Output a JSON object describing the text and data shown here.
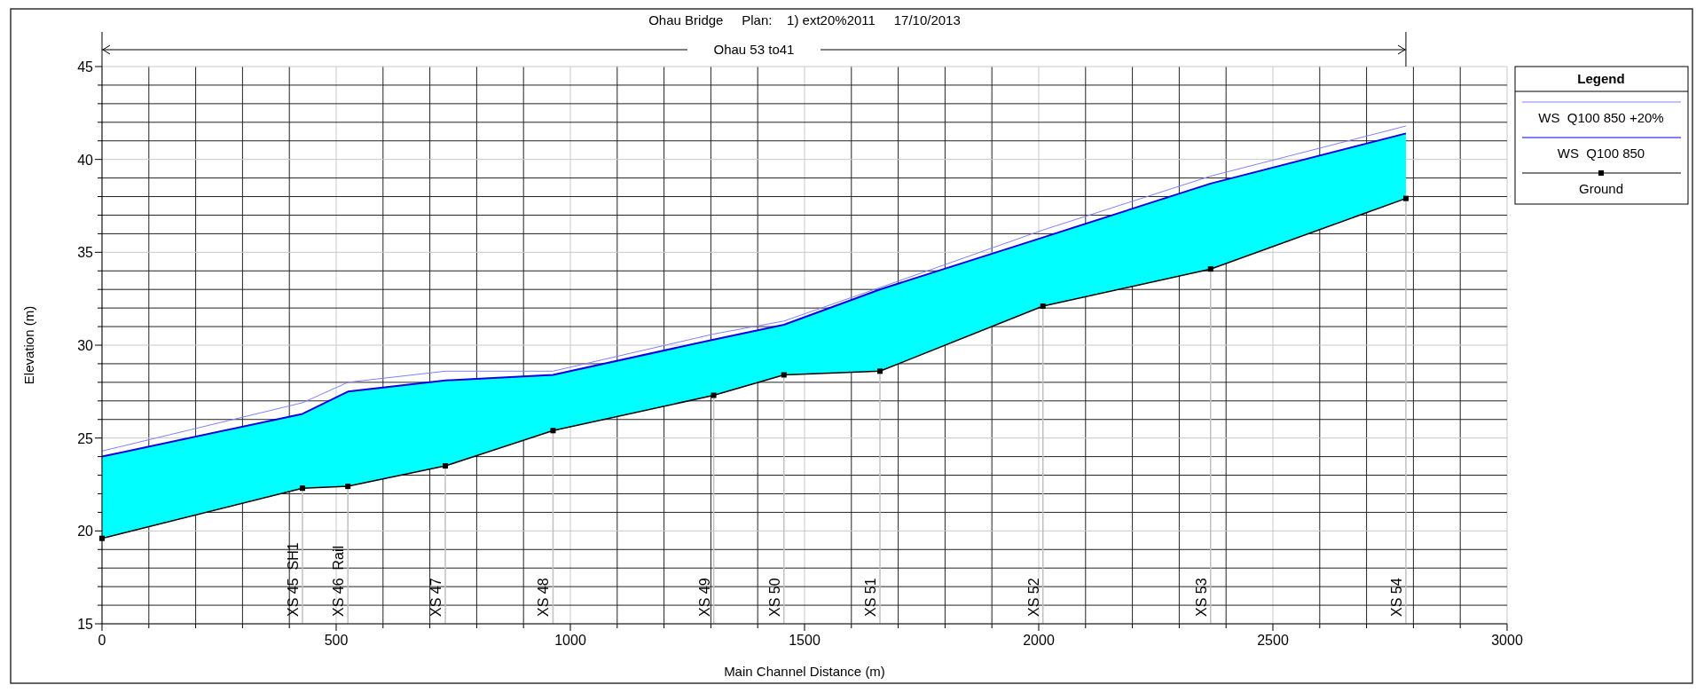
{
  "chart_data": {
    "type": "line",
    "title": "Ohau Bridge     Plan:    1) ext20%2011     17/10/2013",
    "xlabel": "Main Channel Distance (m)",
    "ylabel": "Elevation (m)",
    "legend_title": "Legend",
    "legend": "right",
    "grid": true,
    "xlim": [
      0,
      3000
    ],
    "ylim": [
      15,
      45
    ],
    "xticks": [
      0,
      {
        "value": 100,
        "label": null
      },
      {
        "value": 200,
        "label": null
      },
      {
        "value": 300,
        "label": null
      },
      {
        "value": 400,
        "label": null
      },
      500,
      {
        "value": 600,
        "label": null
      },
      {
        "value": 700,
        "label": null
      },
      {
        "value": 800,
        "label": null
      },
      {
        "value": 900,
        "label": null
      },
      1000,
      {
        "value": 1100,
        "label": null
      },
      {
        "value": 1200,
        "label": null
      },
      {
        "value": 1300,
        "label": null
      },
      {
        "value": 1400,
        "label": null
      },
      1500,
      {
        "value": 1600,
        "label": null
      },
      {
        "value": 1700,
        "label": null
      },
      {
        "value": 1800,
        "label": null
      },
      {
        "value": 1900,
        "label": null
      },
      2000,
      {
        "value": 2100,
        "label": null
      },
      {
        "value": 2200,
        "label": null
      },
      {
        "value": 2300,
        "label": null
      },
      {
        "value": 2400,
        "label": null
      },
      2500,
      {
        "value": 2600,
        "label": null
      },
      {
        "value": 2700,
        "label": null
      },
      {
        "value": 2800,
        "label": null
      },
      {
        "value": 2900,
        "label": null
      },
      3000
    ],
    "yticks": [
      15,
      {
        "value": 16,
        "label": null
      },
      {
        "value": 17,
        "label": null
      },
      {
        "value": 18,
        "label": null
      },
      {
        "value": 19,
        "label": null
      },
      20,
      {
        "value": 21,
        "label": null
      },
      {
        "value": 22,
        "label": null
      },
      {
        "value": 23,
        "label": null
      },
      {
        "value": 24,
        "label": null
      },
      25,
      {
        "value": 26,
        "label": null
      },
      {
        "value": 27,
        "label": null
      },
      {
        "value": 28,
        "label": null
      },
      {
        "value": 29,
        "label": null
      },
      30,
      {
        "value": 31,
        "label": null
      },
      {
        "value": 32,
        "label": null
      },
      {
        "value": 33,
        "label": null
      },
      {
        "value": 34,
        "label": null
      },
      35,
      {
        "value": 36,
        "label": null
      },
      {
        "value": 37,
        "label": null
      },
      {
        "value": 38,
        "label": null
      },
      {
        "value": 39,
        "label": null
      },
      40,
      {
        "value": 41,
        "label": null
      },
      {
        "value": 42,
        "label": null
      },
      {
        "value": 43,
        "label": null
      },
      {
        "value": 44,
        "label": null
      },
      45
    ],
    "x": [
      0,
      428,
      525,
      733,
      963,
      1306,
      1456,
      1661,
      2009,
      2367,
      2784
    ],
    "series": [
      {
        "name": "WS  Q100 850 +20%",
        "color": "#8080ff",
        "marker": "none",
        "values": [
          24.3,
          26.9,
          28.0,
          28.6,
          28.6,
          30.6,
          31.3,
          33.1,
          36.2,
          39.1,
          41.8
        ]
      },
      {
        "name": "WS  Q100 850",
        "color": "#0000e0",
        "marker": "none",
        "values": [
          24.0,
          26.3,
          27.5,
          28.1,
          28.4,
          30.3,
          31.1,
          33.0,
          35.8,
          38.7,
          41.4
        ],
        "lower": [
          19.6,
          22.3,
          22.4,
          23.5,
          25.4,
          27.3,
          28.4,
          28.6,
          32.1,
          34.1,
          37.9
        ],
        "upper": [
          24.0,
          26.3,
          27.5,
          28.1,
          28.4,
          30.3,
          31.1,
          33.0,
          35.8,
          38.7,
          41.4
        ]
      },
      {
        "name": "Ground",
        "color": "#000000",
        "marker": "square",
        "values": [
          19.6,
          22.3,
          22.4,
          23.5,
          25.4,
          27.3,
          28.4,
          28.6,
          32.1,
          34.1,
          37.9
        ]
      }
    ],
    "annotations": [
      "Ohau 53 to41",
      {
        "text": "XS 45  SH1",
        "x": 428,
        "y": 22.3
      },
      {
        "text": "XS 46  Rail",
        "x": 525,
        "y": 22.4
      },
      {
        "text": "XS 47",
        "x": 733,
        "y": 23.5
      },
      {
        "text": "XS 48",
        "x": 963,
        "y": 25.4
      },
      {
        "text": "XS 49",
        "x": 1306,
        "y": 27.3
      },
      {
        "text": "XS 50",
        "x": 1456,
        "y": 28.4
      },
      {
        "text": "XS 51",
        "x": 1661,
        "y": 28.6
      },
      {
        "text": "XS 52",
        "x": 2009,
        "y": 32.1
      },
      {
        "text": "XS 53",
        "x": 2367,
        "y": 34.1
      },
      {
        "text": "XS 54",
        "x": 2784,
        "y": 37.9
      }
    ]
  }
}
